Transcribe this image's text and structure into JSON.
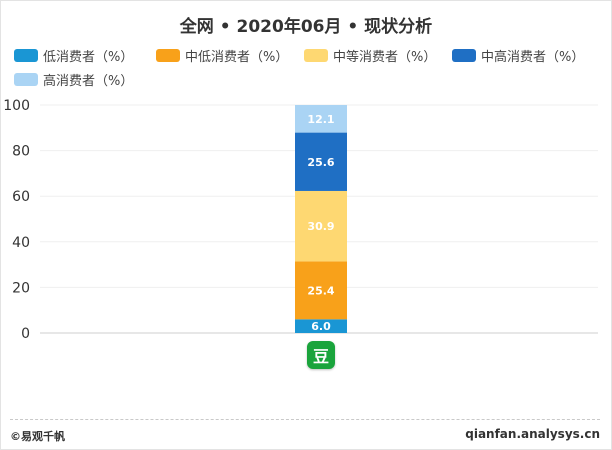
{
  "chart_data": {
    "type": "bar",
    "stacked": true,
    "title": "全网 • 2020年06月 • 现状分析",
    "categories": [
      ""
    ],
    "series": [
      {
        "name": "低消费者（%）",
        "values": [
          6.0
        ],
        "label": "6.0",
        "color": "#1a96d4"
      },
      {
        "name": "中低消费者（%）",
        "values": [
          25.4
        ],
        "label": "25.4",
        "color": "#f8a11a"
      },
      {
        "name": "中等消费者（%）",
        "values": [
          30.9
        ],
        "label": "30.9",
        "color": "#fed872"
      },
      {
        "name": "中高消费者（%）",
        "values": [
          25.6
        ],
        "label": "25.6",
        "color": "#1f6fc4"
      },
      {
        "name": "高消费者（%）",
        "values": [
          12.1
        ],
        "label": "12.1",
        "color": "#aad4f4"
      }
    ],
    "ylim": [
      0,
      100
    ],
    "yticks": [
      "0",
      "20",
      "40",
      "60",
      "80",
      "100"
    ],
    "legend_position": "top",
    "grid": true
  },
  "product_icon": {
    "glyph": "豆",
    "name": "douban-app-icon",
    "color": "#1aa43c"
  },
  "footer": {
    "left": "©易观千帆",
    "right": "qianfan.analysys.cn"
  }
}
